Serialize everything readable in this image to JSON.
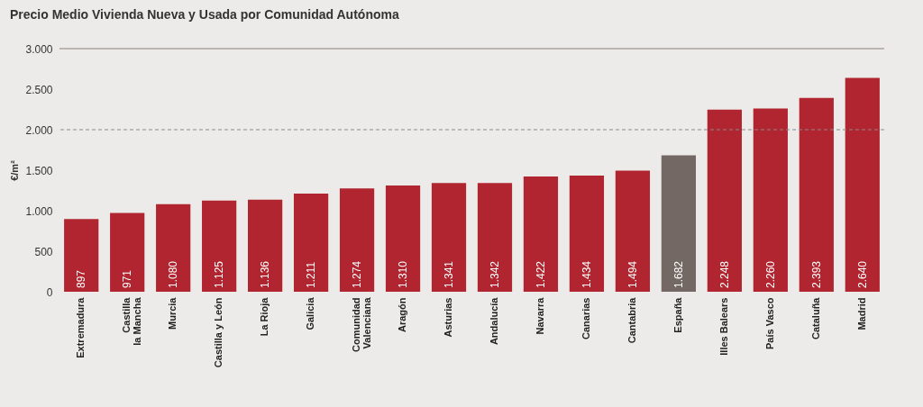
{
  "chart_data": {
    "type": "bar",
    "title": "Precio Medio Vivienda Nueva y Usada por Comunidad Autónoma",
    "ylabel": "€/m²",
    "categories": [
      "Extremadura",
      "Castilla la Mancha",
      "Murcia",
      "Castilla y León",
      "La Rioja",
      "Galicia",
      "Comunidad Valenciana",
      "Aragón",
      "Asturias",
      "Andalucía",
      "Navarra",
      "Canarias",
      "Cantabria",
      "España",
      "Illes Balears",
      "País Vasco",
      "Cataluña",
      "Madrid"
    ],
    "values": [
      897,
      971,
      1080,
      1125,
      1136,
      1211,
      1274,
      1310,
      1341,
      1342,
      1422,
      1434,
      1494,
      1682,
      2248,
      2260,
      2393,
      2640
    ],
    "value_labels": [
      "897",
      "971",
      "1.080",
      "1.125",
      "1.136",
      "1.211",
      "1.274",
      "1.310",
      "1.341",
      "1.342",
      "1.422",
      "1.434",
      "1.494",
      "1.682",
      "2.248",
      "2.260",
      "2.393",
      "2.640"
    ],
    "colors": [
      "#b0252f",
      "#b0252f",
      "#b0252f",
      "#b0252f",
      "#b0252f",
      "#b0252f",
      "#b0252f",
      "#b0252f",
      "#b0252f",
      "#b0252f",
      "#b0252f",
      "#b0252f",
      "#b0252f",
      "#736863",
      "#b0252f",
      "#b0252f",
      "#b0252f",
      "#b0252f"
    ],
    "ylim": [
      0,
      3000
    ],
    "yticks": [
      0,
      500,
      {
        "value": 1000,
        "label": "1.000"
      },
      {
        "value": 1500,
        "label": "1.500"
      },
      {
        "value": 2000,
        "label": "2.000"
      },
      {
        "value": 2500,
        "label": "2.500"
      },
      {
        "value": 3000,
        "label": "3.000"
      }
    ],
    "ref_lines": [
      {
        "axis": "y",
        "value": 2000,
        "line_style": "dashed",
        "color": "#8a8a8a"
      },
      {
        "axis": "y",
        "value": 3000,
        "line_style": "solid",
        "color": "#8a8078"
      }
    ]
  }
}
